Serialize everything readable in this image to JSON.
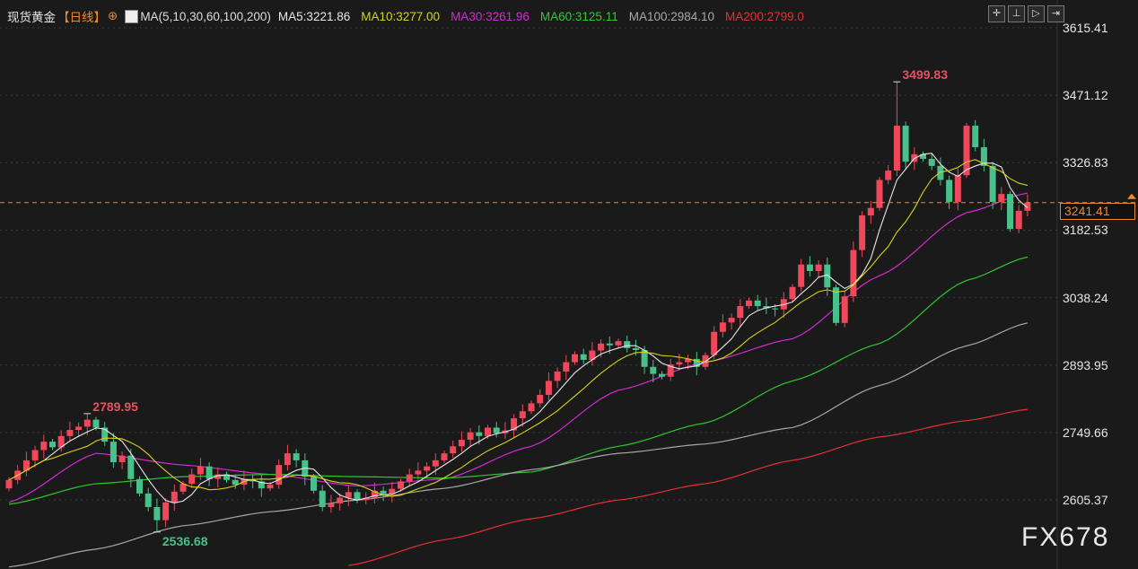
{
  "header": {
    "symbol": "现货黄金",
    "period": "【日线】",
    "indicator": "MA(5,10,30,60,100,200)",
    "ma_values": [
      {
        "label": "MA5:3221.86",
        "color": "#e8e8e8"
      },
      {
        "label": "MA10:3277.00",
        "color": "#d6d21a"
      },
      {
        "label": "MA30:3261.96",
        "color": "#d22ad2"
      },
      {
        "label": "MA60:3125.11",
        "color": "#2ec82e"
      },
      {
        "label": "MA100:2984.10",
        "color": "#a8a8a8"
      },
      {
        "label": "MA200:2799.0",
        "color": "#e53030"
      }
    ]
  },
  "toolbar": [
    {
      "icon": "crosshair-icon",
      "glyph": "✛"
    },
    {
      "icon": "fit-range-icon",
      "glyph": "⊥"
    },
    {
      "icon": "play-icon",
      "glyph": "▷"
    },
    {
      "icon": "jump-end-icon",
      "glyph": "⇥"
    }
  ],
  "watermark": "FX678",
  "chart_data": {
    "type": "candlestick",
    "title": "",
    "y_ticks": [
      "3615.41",
      "3471.12",
      "3326.83",
      "3182.53",
      "3038.24",
      "2893.95",
      "2749.66",
      "2605.37"
    ],
    "current_price": "3241.41",
    "colors": {
      "up": "#f0475a",
      "down": "#48c08a",
      "current_line": "#f08a24",
      "background": "#1a1a1a"
    },
    "annotations": [
      {
        "label": "3499.83",
        "value": 3499.83,
        "index": 102,
        "color": "#e85060"
      },
      {
        "label": "2789.95",
        "value": 2789.95,
        "index": 9,
        "color": "#e85060"
      },
      {
        "label": "2536.68",
        "value": 2536.68,
        "index": 17,
        "color": "#48c08a"
      }
    ],
    "closes": [
      2648,
      2668,
      2690,
      2712,
      2730,
      2718,
      2742,
      2755,
      2762,
      2777,
      2760,
      2730,
      2686,
      2700,
      2650,
      2619,
      2590,
      2562,
      2600,
      2623,
      2640,
      2660,
      2677,
      2650,
      2660,
      2648,
      2638,
      2650,
      2645,
      2630,
      2638,
      2680,
      2705,
      2690,
      2655,
      2625,
      2590,
      2598,
      2610,
      2622,
      2605,
      2610,
      2625,
      2618,
      2629,
      2645,
      2660,
      2668,
      2677,
      2690,
      2705,
      2720,
      2734,
      2750,
      2742,
      2760,
      2748,
      2754,
      2780,
      2795,
      2812,
      2830,
      2860,
      2880,
      2900,
      2917,
      2905,
      2925,
      2940,
      2936,
      2945,
      2930,
      2926,
      2890,
      2875,
      2869,
      2895,
      2900,
      2907,
      2890,
      2915,
      2965,
      2985,
      2995,
      3020,
      3032,
      3020,
      3015,
      3013,
      3035,
      3061,
      3109,
      3095,
      3109,
      3060,
      2984,
      3041,
      3140,
      3214,
      3230,
      3290,
      3310,
      3406,
      3329,
      3345,
      3335,
      3320,
      3290,
      3243,
      3300,
      3406,
      3360,
      3320,
      3243,
      3260,
      3185,
      3224,
      3241.41
    ],
    "first_open": 2630,
    "ma_series": [
      {
        "name": "MA30",
        "color": "#d22ad2",
        "points": [
          [
            0,
            2600
          ],
          [
            10,
            2705
          ],
          [
            20,
            2680
          ],
          [
            30,
            2660
          ],
          [
            40,
            2635
          ],
          [
            50,
            2650
          ],
          [
            60,
            2720
          ],
          [
            70,
            2840
          ],
          [
            80,
            2900
          ],
          [
            90,
            2950
          ],
          [
            100,
            3085
          ],
          [
            110,
            3220
          ],
          [
            117,
            3262
          ]
        ]
      },
      {
        "name": "MA60",
        "color": "#2ec82e",
        "points": [
          [
            0,
            2596
          ],
          [
            10,
            2640
          ],
          [
            20,
            2655
          ],
          [
            30,
            2660
          ],
          [
            40,
            2655
          ],
          [
            50,
            2652
          ],
          [
            60,
            2665
          ],
          [
            70,
            2720
          ],
          [
            80,
            2770
          ],
          [
            90,
            2860
          ],
          [
            100,
            2940
          ],
          [
            110,
            3075
          ],
          [
            117,
            3125
          ]
        ]
      },
      {
        "name": "MA100",
        "color": "#a8a8a8",
        "points": [
          [
            0,
            2462
          ],
          [
            10,
            2500
          ],
          [
            20,
            2550
          ],
          [
            30,
            2580
          ],
          [
            40,
            2605
          ],
          [
            50,
            2630
          ],
          [
            60,
            2670
          ],
          [
            70,
            2705
          ],
          [
            80,
            2725
          ],
          [
            90,
            2760
          ],
          [
            100,
            2850
          ],
          [
            110,
            2935
          ],
          [
            117,
            2984
          ]
        ]
      },
      {
        "name": "MA200",
        "color": "#e53030",
        "points": [
          [
            39,
            2465
          ],
          [
            50,
            2520
          ],
          [
            60,
            2565
          ],
          [
            70,
            2605
          ],
          [
            80,
            2640
          ],
          [
            90,
            2690
          ],
          [
            100,
            2740
          ],
          [
            110,
            2775
          ],
          [
            117,
            2799
          ]
        ]
      }
    ],
    "computed_ma": [
      {
        "name": "MA5",
        "period": 5,
        "color": "#e8e8e8"
      },
      {
        "name": "MA10",
        "period": 10,
        "color": "#d6d21a"
      }
    ]
  }
}
